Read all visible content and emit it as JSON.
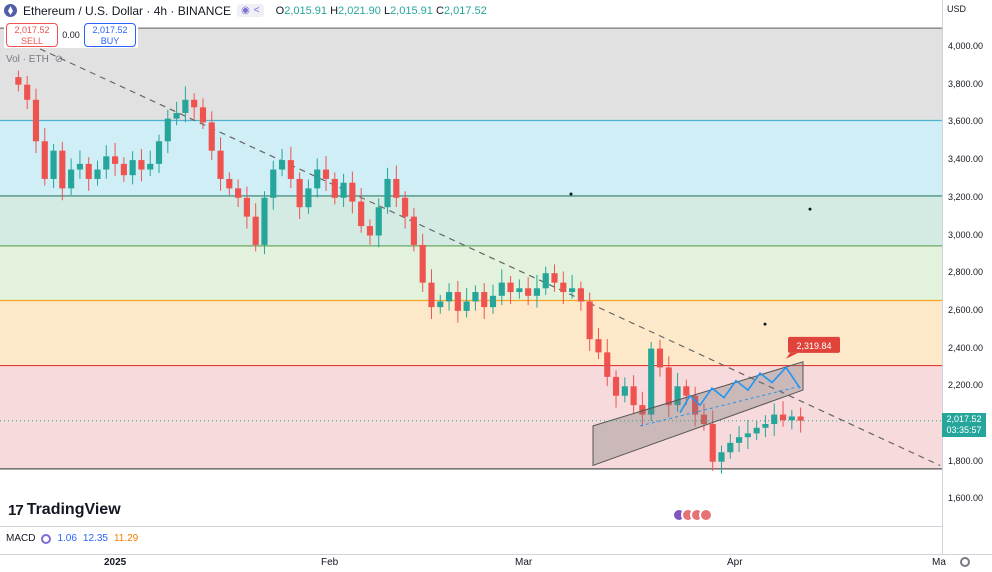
{
  "header": {
    "symbol_title": "Ethereum / U.S. Dollar · 4h · BINANCE",
    "ohlc": {
      "o_label": "O",
      "o": "2,015.91",
      "h_label": "H",
      "h": "2,021.90",
      "l_label": "L",
      "l": "2,015.91",
      "c_label": "C",
      "c": "2,017.52"
    },
    "trade": {
      "sell_price": "2,017.52",
      "sell_label": "SELL",
      "spread": "0.00",
      "buy_price": "2,017.52",
      "buy_label": "BUY"
    },
    "volume_label": "Vol · ETH"
  },
  "price_axis": {
    "currency": "USD",
    "ticks": [
      "4,000.00",
      "3,800.00",
      "3,600.00",
      "3,400.00",
      "3,200.00",
      "3,000.00",
      "2,800.00",
      "2,600.00",
      "2,400.00",
      "2,200.00",
      "2,000.00",
      "1,800.00",
      "1,600.00"
    ],
    "current_price": "2,017.52",
    "countdown": "03:35:57"
  },
  "time_axis": {
    "ticks": [
      "2025",
      "Feb",
      "Mar",
      "Apr",
      "Ma"
    ]
  },
  "macd": {
    "label": "MACD",
    "v1": "1.06",
    "v2": "12.35",
    "v3": "11.29"
  },
  "brand": {
    "logo_text": "TradingView"
  },
  "colors": {
    "up": "#26a69a",
    "down": "#ef5350",
    "accent": "#2962ff"
  },
  "chart_data": {
    "type": "line",
    "symbol": "ETHUSD",
    "interval": "4h",
    "y_range": [
      1520,
      4150
    ],
    "x_ticks": [
      "2025",
      "Feb",
      "Mar",
      "Apr",
      "Ma"
    ],
    "close_series": [
      [
        3800,
        3720,
        3500,
        3300,
        3450,
        3250,
        3350,
        3380,
        3300,
        3350,
        3420,
        3380,
        3320,
        3400,
        3350
      ],
      [
        3380,
        3500,
        3620,
        3650,
        3720,
        3680,
        3600,
        3450,
        3300,
        3250,
        3200,
        3100,
        2950,
        3200,
        3350
      ],
      [
        3400,
        3300,
        3150,
        3250,
        3350,
        3300,
        3200,
        3280,
        3180,
        3050,
        3000,
        3150,
        3300,
        3200,
        3100
      ],
      [
        2950,
        2750,
        2620,
        2650,
        2700,
        2600,
        2650,
        2700,
        2620,
        2680,
        2750,
        2700,
        2720,
        2680,
        2720,
        2800,
        2750,
        2700,
        2720,
        2650
      ],
      [
        2450,
        2380,
        2250,
        2150,
        2200,
        2100,
        2050,
        2400,
        2300,
        2100,
        2200,
        2150,
        2050,
        2000,
        1800,
        1850,
        1900,
        1930,
        1950,
        1980,
        2000,
        2050,
        2020,
        2040,
        2017.52
      ]
    ],
    "fib_levels": [
      {
        "price": 4100,
        "band_color": "#e1e1e1"
      },
      {
        "price": 3610,
        "line_color": "#4fb3cf",
        "band_color": "#cfeef5"
      },
      {
        "price": 3210,
        "line_color": "#2e7d6a",
        "band_color": "#d4ebe3"
      },
      {
        "price": 2945,
        "line_color": "#6ca866",
        "band_color": "#e3f2dc"
      },
      {
        "price": 2655,
        "line_color": "#f5a623",
        "band_color": "#fde9c9"
      },
      {
        "price": 2310,
        "line_color": "#e53935",
        "band_color": "#f7dadb"
      },
      {
        "price": 1762,
        "line_color": "#555555"
      }
    ],
    "annotation_price": "2,319.84"
  }
}
